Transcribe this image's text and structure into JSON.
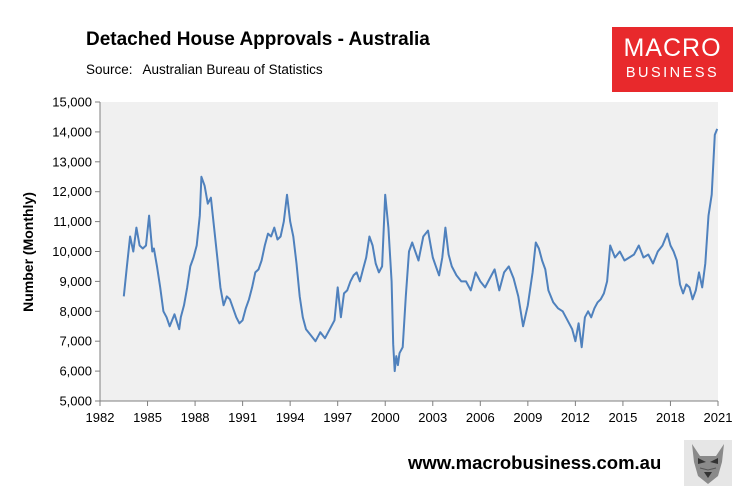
{
  "header": {
    "title": "Detached House Approvals - Australia",
    "source_label": "Source:",
    "source_value": "Australian Bureau of Statistics"
  },
  "logo": {
    "line1": "MACRO",
    "line2": "BUSINESS",
    "color": "#e8292c"
  },
  "footer": {
    "website": "www.macrobusiness.com.au"
  },
  "chart_data": {
    "type": "line",
    "title": "Detached House Approvals - Australia",
    "ylabel": "Number (Monthly)",
    "xlabel": "",
    "xlim": [
      1982,
      2021
    ],
    "ylim": [
      5000,
      15000
    ],
    "x_ticks": [
      "1982",
      "1985",
      "1988",
      "1991",
      "1994",
      "1997",
      "2000",
      "2003",
      "2006",
      "2009",
      "2012",
      "2015",
      "2018",
      "2021"
    ],
    "y_ticks": [
      "5,000",
      "6,000",
      "7,000",
      "8,000",
      "9,000",
      "10,000",
      "11,000",
      "12,000",
      "13,000",
      "14,000",
      "15,000"
    ],
    "grid": false,
    "plot_background": "#f0f0f0",
    "line_color": "#4f81bd",
    "series": [
      {
        "x": [
          1983.5,
          1983.7,
          1983.9,
          1984.1,
          1984.3,
          1984.5,
          1984.7,
          1984.9,
          1985.1,
          1985.3,
          1985.4,
          1985.6,
          1985.8,
          1986.0,
          1986.2,
          1986.4,
          1986.7,
          1987.0,
          1987.1,
          1987.3,
          1987.5,
          1987.7,
          1987.9,
          1988.1,
          1988.3,
          1988.4,
          1988.6,
          1988.8,
          1989.0,
          1989.2,
          1989.4,
          1989.6,
          1989.8,
          1990.0,
          1990.2,
          1990.4,
          1990.6,
          1990.8,
          1991.0,
          1991.2,
          1991.4,
          1991.6,
          1991.8,
          1992.0,
          1992.2,
          1992.4,
          1992.6,
          1992.8,
          1993.0,
          1993.2,
          1993.4,
          1993.6,
          1993.8,
          1994.0,
          1994.2,
          1994.4,
          1994.6,
          1994.8,
          1995.0,
          1995.3,
          1995.6,
          1995.9,
          1996.2,
          1996.5,
          1996.8,
          1997.0,
          1997.2,
          1997.4,
          1997.6,
          1997.8,
          1998.0,
          1998.2,
          1998.4,
          1998.6,
          1998.8,
          1999.0,
          1999.2,
          1999.4,
          1999.6,
          1999.8,
          2000.0,
          2000.2,
          2000.4,
          2000.5,
          2000.6,
          2000.7,
          2000.8,
          2000.9,
          2001.1,
          2001.3,
          2001.5,
          2001.7,
          2001.9,
          2002.1,
          2002.4,
          2002.7,
          2003.0,
          2003.2,
          2003.4,
          2003.6,
          2003.8,
          2004.0,
          2004.2,
          2004.5,
          2004.8,
          2005.1,
          2005.4,
          2005.7,
          2006.0,
          2006.3,
          2006.6,
          2006.9,
          2007.2,
          2007.5,
          2007.8,
          2008.1,
          2008.4,
          2008.7,
          2009.0,
          2009.3,
          2009.5,
          2009.7,
          2009.9,
          2010.1,
          2010.3,
          2010.6,
          2010.9,
          2011.2,
          2011.5,
          2011.8,
          2012.0,
          2012.2,
          2012.4,
          2012.6,
          2012.8,
          2013.0,
          2013.2,
          2013.4,
          2013.6,
          2013.8,
          2014.0,
          2014.2,
          2014.5,
          2014.8,
          2015.1,
          2015.4,
          2015.7,
          2016.0,
          2016.3,
          2016.6,
          2016.9,
          2017.2,
          2017.5,
          2017.8,
          2018.0,
          2018.2,
          2018.4,
          2018.6,
          2018.8,
          2019.0,
          2019.2,
          2019.4,
          2019.6,
          2019.8,
          2020.0,
          2020.2,
          2020.4,
          2020.6,
          2020.8,
          2020.95
        ],
        "y": [
          8500,
          9500,
          10500,
          10000,
          10800,
          10200,
          10100,
          10200,
          11200,
          10000,
          10100,
          9500,
          8800,
          8000,
          7800,
          7500,
          7900,
          7400,
          7800,
          8200,
          8800,
          9500,
          9800,
          10200,
          11200,
          12500,
          12200,
          11600,
          11800,
          10800,
          9800,
          8800,
          8200,
          8500,
          8400,
          8100,
          7800,
          7600,
          7700,
          8100,
          8400,
          8800,
          9300,
          9400,
          9700,
          10200,
          10600,
          10500,
          10800,
          10400,
          10500,
          11000,
          11900,
          11000,
          10500,
          9600,
          8500,
          7800,
          7400,
          7200,
          7000,
          7300,
          7100,
          7400,
          7700,
          8800,
          7800,
          8600,
          8700,
          9000,
          9200,
          9300,
          9000,
          9400,
          9800,
          10500,
          10200,
          9600,
          9300,
          9500,
          11900,
          10800,
          9000,
          6900,
          6000,
          6500,
          6200,
          6600,
          6800,
          8500,
          10000,
          10300,
          10000,
          9700,
          10500,
          10700,
          9800,
          9500,
          9200,
          9800,
          10800,
          9900,
          9500,
          9200,
          9000,
          9000,
          8700,
          9300,
          9000,
          8800,
          9100,
          9400,
          8700,
          9300,
          9500,
          9100,
          8500,
          7500,
          8200,
          9300,
          10300,
          10100,
          9700,
          9400,
          8700,
          8300,
          8100,
          8000,
          7700,
          7400,
          7000,
          7600,
          6800,
          7800,
          8000,
          7800,
          8100,
          8300,
          8400,
          8600,
          9000,
          10200,
          9800,
          10000,
          9700,
          9800,
          9900,
          10200,
          9800,
          9900,
          9600,
          10000,
          10200,
          10600,
          10200,
          10000,
          9700,
          8900,
          8600,
          8900,
          8800,
          8400,
          8700,
          9300,
          8800,
          9600,
          11200,
          11900,
          13900,
          14100
        ]
      }
    ]
  }
}
